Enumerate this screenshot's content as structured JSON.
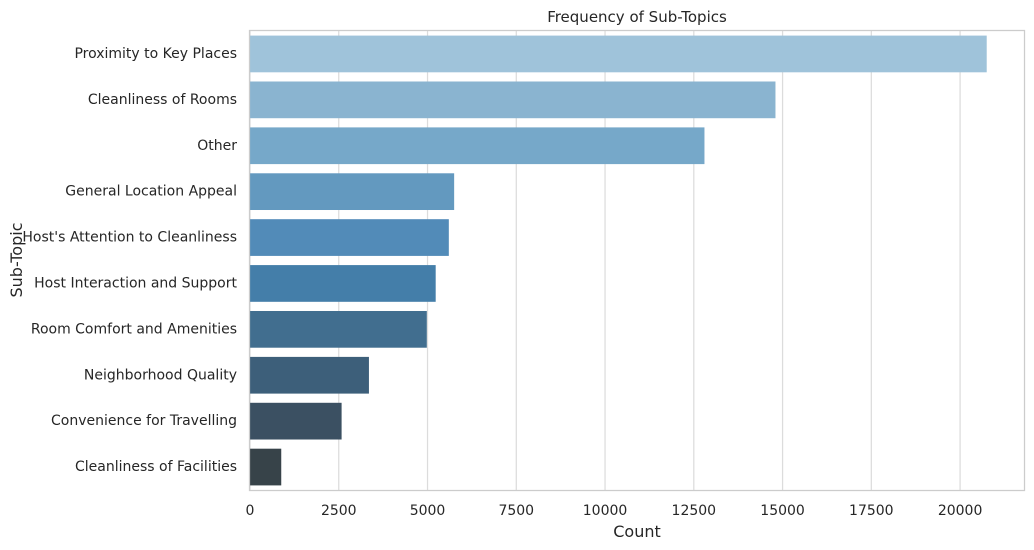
{
  "chart_data": {
    "type": "bar",
    "orientation": "horizontal",
    "title": "Frequency of Sub-Topics",
    "xlabel": "Count",
    "ylabel": "Sub-Topic",
    "xlim": [
      0,
      21800
    ],
    "xticks": [
      0,
      2500,
      5000,
      7500,
      10000,
      12500,
      15000,
      17500,
      20000
    ],
    "grid": true,
    "categories": [
      "Proximity to Key Places",
      "Cleanliness of Rooms",
      "Other",
      "General Location Appeal",
      "Host's Attention to Cleanliness",
      "Host Interaction and Support",
      "Room Comfort and Amenities",
      "Neighborhood Quality",
      "Convenience for Travelling",
      "Cleanliness of Facilities"
    ],
    "values": [
      20750,
      14800,
      12800,
      5750,
      5600,
      5230,
      4980,
      3350,
      2580,
      880
    ],
    "colors": [
      "#9fc3da",
      "#8ab4d0",
      "#76a8c9",
      "#6399bf",
      "#528bb8",
      "#447ea9",
      "#416e8f",
      "#3d5f7a",
      "#3b5062",
      "#374349"
    ]
  }
}
